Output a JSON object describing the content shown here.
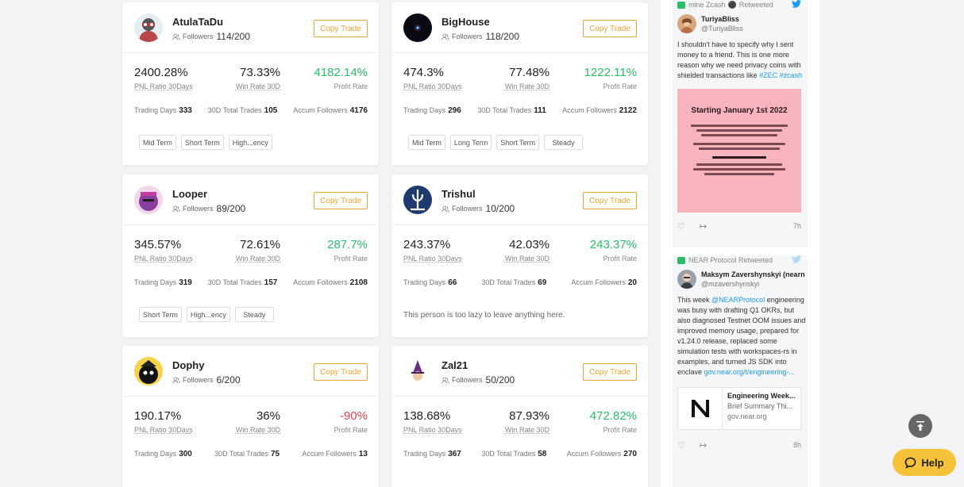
{
  "copy_label": "Copy Trade",
  "labels": {
    "followers": "Followers",
    "pnl": "PNL Ratio 30Days",
    "win": "Win Rate 30D",
    "profit": "Profit Rate",
    "days": "Trading Days",
    "trades": "30D Total Trades",
    "accum": "Accum Followers"
  },
  "traders": [
    {
      "name": "AtulaTaDu",
      "followers": "114/200",
      "pnl": "2400.28%",
      "win": "73.33%",
      "profit": "4182.14%",
      "profit_tone": "positive",
      "days": "333",
      "trades": "105",
      "accum": "4176",
      "tags": [
        "Mid Term",
        "Short Term",
        "High...ency"
      ],
      "bio": "",
      "avatar_color": "#b64a4a"
    },
    {
      "name": "BigHouse",
      "followers": "118/200",
      "pnl": "474.3%",
      "win": "77.48%",
      "profit": "1222.11%",
      "profit_tone": "positive",
      "days": "296",
      "trades": "111",
      "accum": "2122",
      "tags": [
        "Mid Term",
        "Long Term",
        "Short Term",
        "Steady"
      ],
      "bio": "",
      "avatar_color": "#0a0a14"
    },
    {
      "name": "Looper",
      "followers": "89/200",
      "pnl": "345.57%",
      "win": "72.61%",
      "profit": "287.7%",
      "profit_tone": "positive",
      "days": "319",
      "trades": "157",
      "accum": "2108",
      "tags": [
        "Short Term",
        "High...ency",
        "Steady"
      ],
      "bio": "",
      "avatar_color": "#8a3fa0"
    },
    {
      "name": "Trishul",
      "followers": "10/200",
      "pnl": "243.37%",
      "win": "42.03%",
      "profit": "243.37%",
      "profit_tone": "positive",
      "days": "66",
      "trades": "69",
      "accum": "20",
      "tags": [],
      "bio": "This person is too lazy to leave anything here.",
      "avatar_color": "#1f3a6e"
    },
    {
      "name": "Dophy",
      "followers": "6/200",
      "pnl": "190.17%",
      "win": "36%",
      "profit": "-90%",
      "profit_tone": "negative",
      "days": "300",
      "trades": "75",
      "accum": "13",
      "tags": [],
      "bio": "",
      "avatar_color": "#111111"
    },
    {
      "name": "Zal21",
      "followers": "50/200",
      "pnl": "138.68%",
      "win": "87.93%",
      "profit": "472.82%",
      "profit_tone": "positive",
      "days": "367",
      "trades": "58",
      "accum": "270",
      "tags": [],
      "bio": "",
      "avatar_color": "#ffffff"
    }
  ],
  "twitter": {
    "tweet1": {
      "retweeted_by": "mine Zcash",
      "retweeted_suffix": "Retweeted",
      "name": "TuriyaBliss",
      "handle": "@TuriyaBliss",
      "text": "I shouldn't have to specify why I sent money to a friend. This is one more reason why we need privacy coins with shielded transactions like",
      "hashtags": "#ZEC #zcash",
      "poster_title": "Starting January 1st 2022",
      "time": "7h"
    },
    "tweet2": {
      "retweeted_by": "NEAR Protocol Retweeted",
      "name": "Maksym Zavershynskyi (nearn",
      "handle": "@mzavershynskyi",
      "text_before": "This week",
      "mention": "@NEARProtocol",
      "text_after": "engineering was busy with drafting Q1 OKRs, but also diagnosed Testnet OOM issues and improved memory usage, prepared for v1.24.0 release, replaced some simulation tests with workspaces-rs in examples, and turned JS SDK into enclave",
      "link": "gov.near.org/t/engineering-...",
      "card_title": "Engineering Week...",
      "card_desc": "Brief Summary Thi...",
      "card_url": "gov.near.org",
      "time": "8h"
    }
  },
  "help_label": "Help"
}
